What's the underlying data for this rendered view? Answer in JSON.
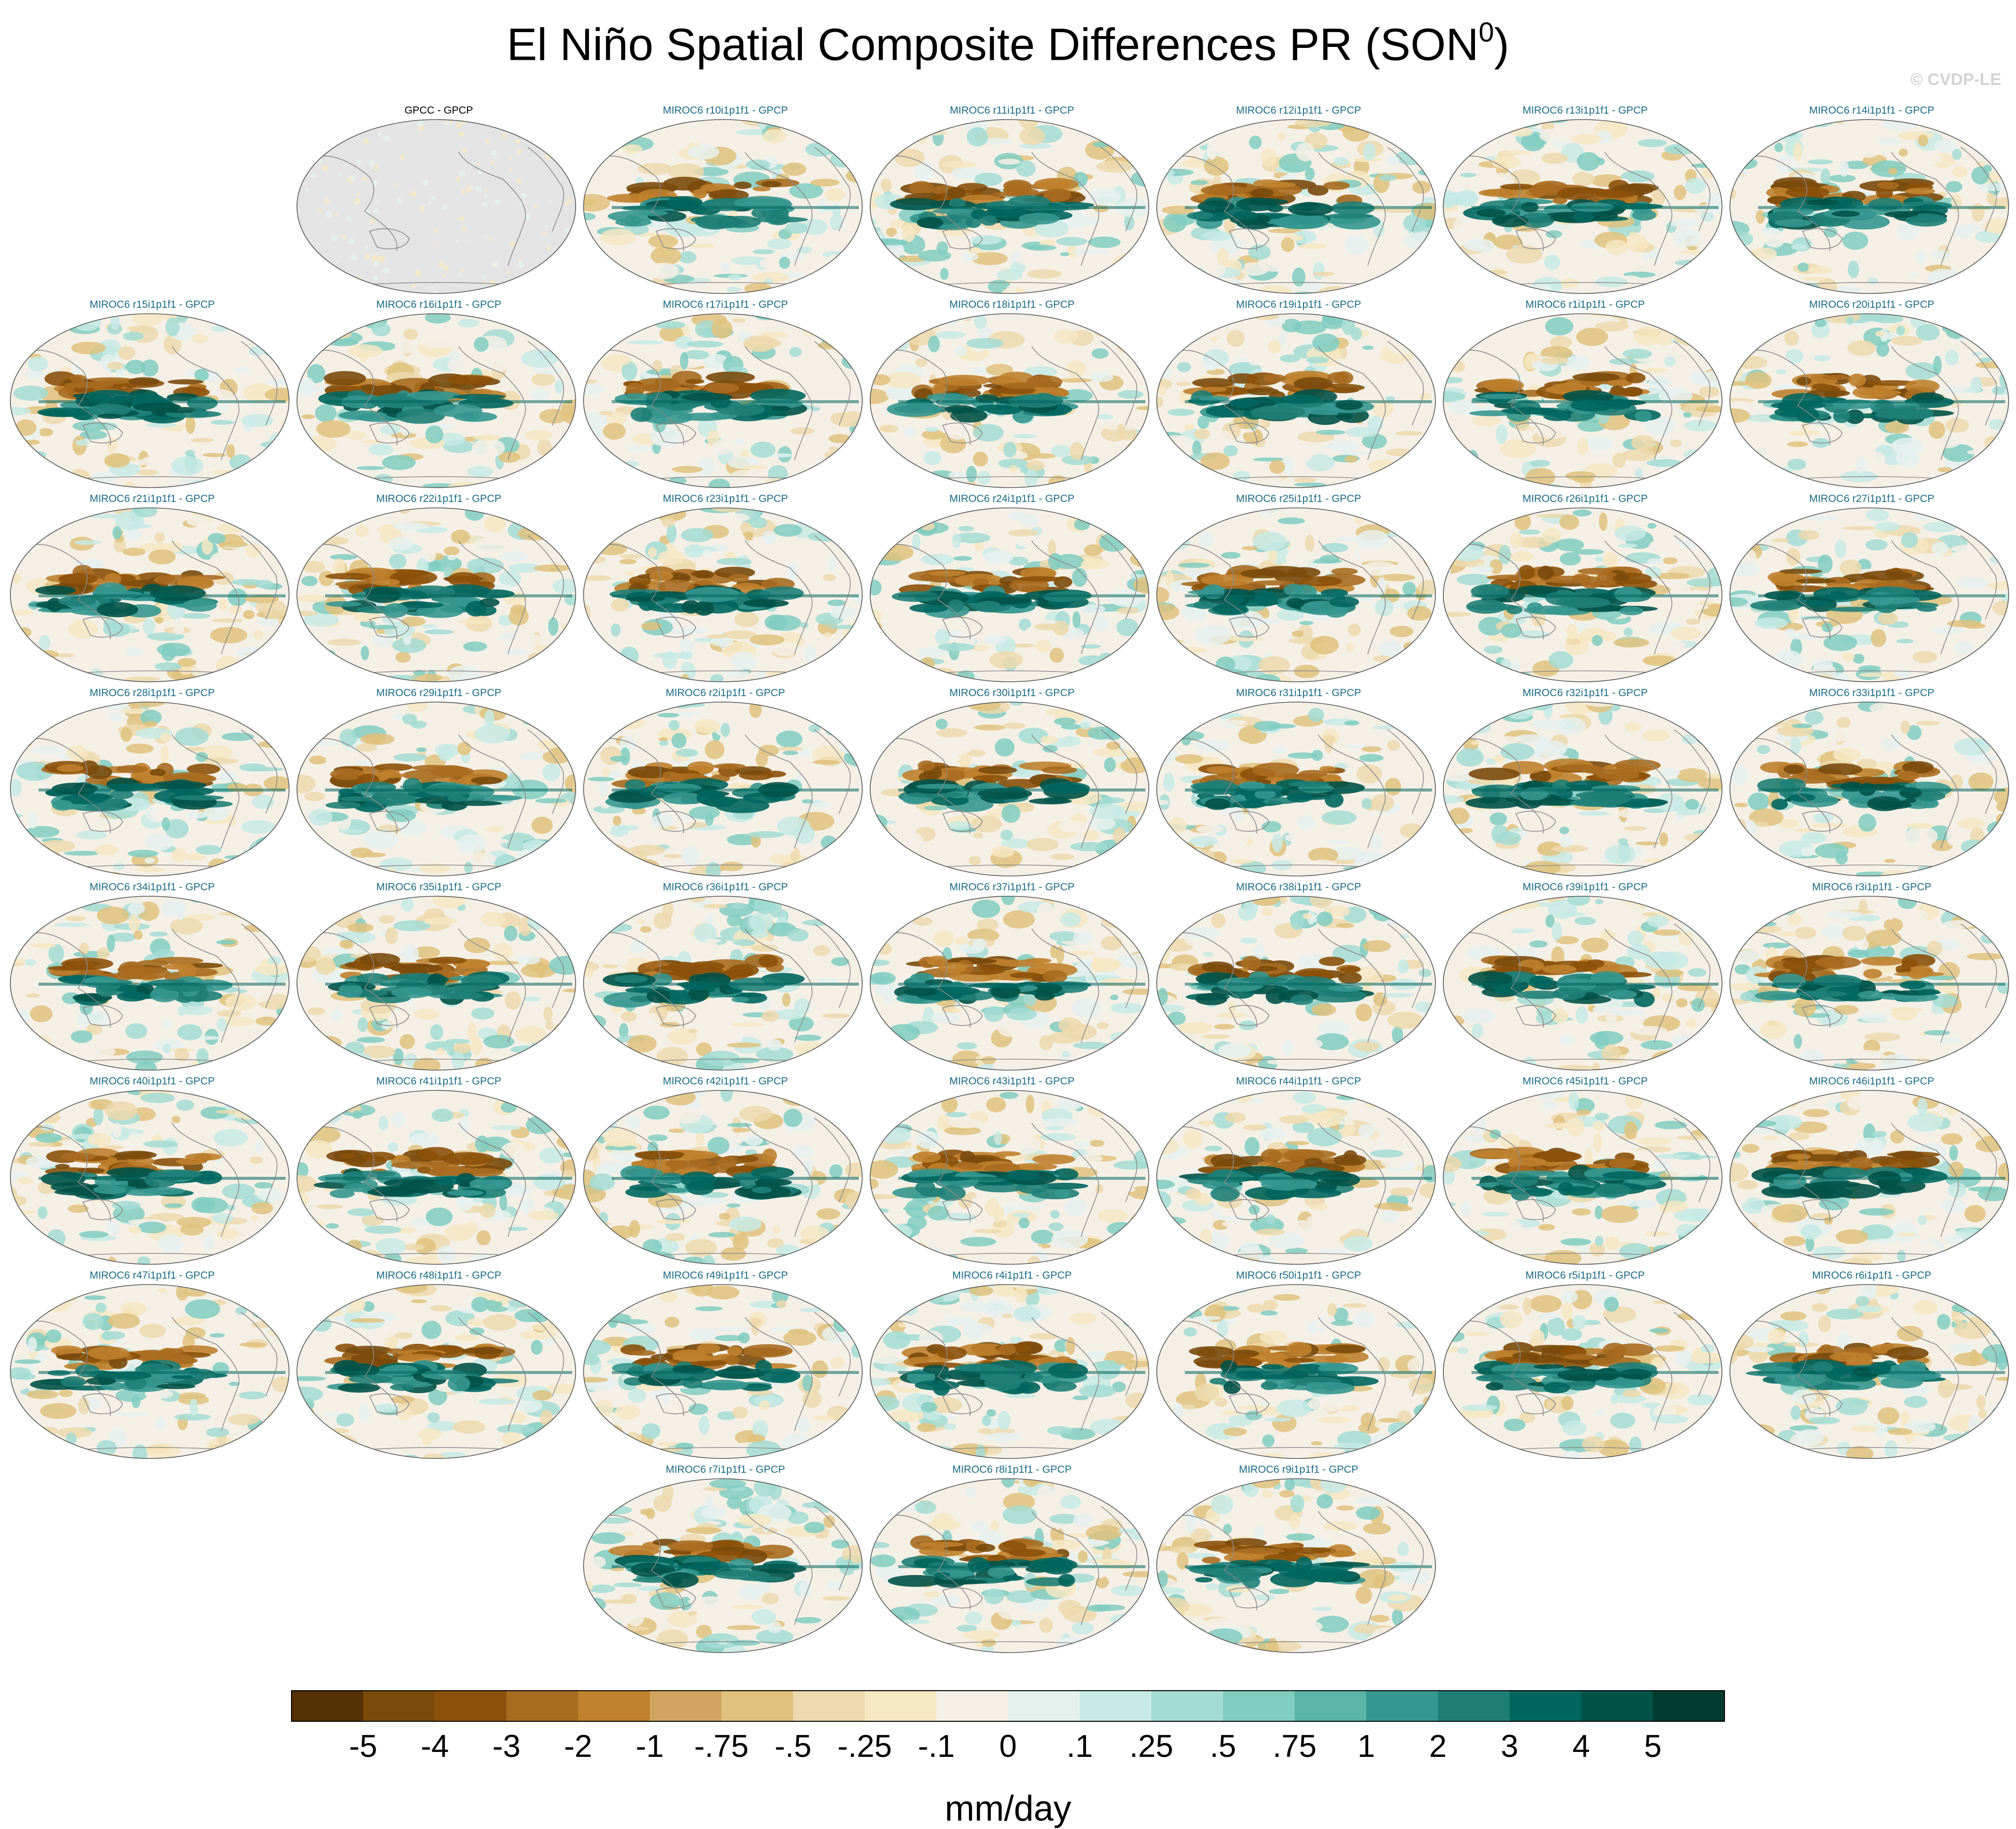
{
  "title_main": "El Niño Spatial Composite Differences PR (SON",
  "title_sup": "0",
  "title_end": ")",
  "copyright": "© CVDP-LE",
  "colorbar": {
    "label": "mm/day",
    "ticks": [
      "-5",
      "-4",
      "-3",
      "-2",
      "-1",
      "-.75",
      "-.5",
      "-.25",
      "-.1",
      "0",
      ".1",
      ".25",
      ".5",
      ".75",
      "1",
      "2",
      "3",
      "4",
      "5"
    ],
    "colors": [
      "#543005",
      "#7a4a0c",
      "#8c510a",
      "#a86c20",
      "#bf812d",
      "#d1a45f",
      "#dfc27d",
      "#ecd9ad",
      "#f6e8c3",
      "#f5f0e6",
      "#e6f1ee",
      "#c7eae5",
      "#a3dcd3",
      "#80cdc1",
      "#5ab4a8",
      "#35978f",
      "#1f7f77",
      "#01665e",
      "#025248",
      "#003c30"
    ]
  },
  "chart_data": {
    "type": "heatmap",
    "title": "El Niño Spatial Composite Differences PR (SON0)",
    "units": "mm/day",
    "projection": "global map panels",
    "panel_titles": [
      "GPCC - GPCP",
      "MIROC6 r10i1p1f1 - GPCP",
      "MIROC6 r11i1p1f1 - GPCP",
      "MIROC6 r12i1p1f1 - GPCP",
      "MIROC6 r13i1p1f1 - GPCP",
      "MIROC6 r14i1p1f1 - GPCP",
      "MIROC6 r15i1p1f1 - GPCP",
      "MIROC6 r16i1p1f1 - GPCP",
      "MIROC6 r17i1p1f1 - GPCP",
      "MIROC6 r18i1p1f1 - GPCP",
      "MIROC6 r19i1p1f1 - GPCP",
      "MIROC6 r1i1p1f1 - GPCP",
      "MIROC6 r20i1p1f1 - GPCP",
      "MIROC6 r21i1p1f1 - GPCP",
      "MIROC6 r22i1p1f1 - GPCP",
      "MIROC6 r23i1p1f1 - GPCP",
      "MIROC6 r24i1p1f1 - GPCP",
      "MIROC6 r25i1p1f1 - GPCP",
      "MIROC6 r26i1p1f1 - GPCP",
      "MIROC6 r27i1p1f1 - GPCP",
      "MIROC6 r28i1p1f1 - GPCP",
      "MIROC6 r29i1p1f1 - GPCP",
      "MIROC6 r2i1p1f1 - GPCP",
      "MIROC6 r30i1p1f1 - GPCP",
      "MIROC6 r31i1p1f1 - GPCP",
      "MIROC6 r32i1p1f1 - GPCP",
      "MIROC6 r33i1p1f1 - GPCP",
      "MIROC6 r34i1p1f1 - GPCP",
      "MIROC6 r35i1p1f1 - GPCP",
      "MIROC6 r36i1p1f1 - GPCP",
      "MIROC6 r37i1p1f1 - GPCP",
      "MIROC6 r38i1p1f1 - GPCP",
      "MIROC6 r39i1p1f1 - GPCP",
      "MIROC6 r3i1p1f1 - GPCP",
      "MIROC6 r40i1p1f1 - GPCP",
      "MIROC6 r41i1p1f1 - GPCP",
      "MIROC6 r42i1p1f1 - GPCP",
      "MIROC6 r43i1p1f1 - GPCP",
      "MIROC6 r44i1p1f1 - GPCP",
      "MIROC6 r45i1p1f1 - GPCP",
      "MIROC6 r46i1p1f1 - GPCP",
      "MIROC6 r47i1p1f1 - GPCP",
      "MIROC6 r48i1p1f1 - GPCP",
      "MIROC6 r49i1p1f1 - GPCP",
      "MIROC6 r4i1p1f1 - GPCP",
      "MIROC6 r50i1p1f1 - GPCP",
      "MIROC6 r5i1p1f1 - GPCP",
      "MIROC6 r6i1p1f1 - GPCP",
      "MIROC6 r7i1p1f1 - GPCP",
      "MIROC6 r8i1p1f1 - GPCP",
      "MIROC6 r9i1p1f1 - GPCP"
    ],
    "colorbar_levels": [
      -5,
      -4,
      -3,
      -2,
      -1,
      -0.75,
      -0.5,
      -0.25,
      -0.1,
      0,
      0.1,
      0.25,
      0.5,
      0.75,
      1,
      2,
      3,
      4,
      5
    ]
  }
}
